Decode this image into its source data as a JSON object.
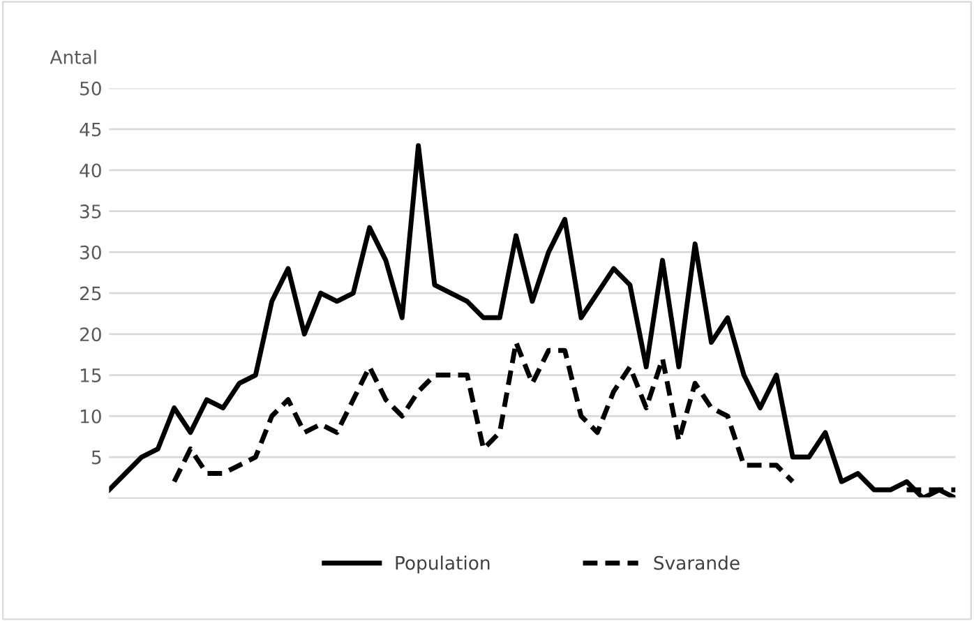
{
  "chart_data": {
    "type": "line",
    "ylabel": "Antal",
    "categories": [
      null,
      null,
      null,
      null,
      null,
      null,
      null,
      null,
      null,
      null,
      null,
      null,
      null,
      null,
      null,
      null,
      null,
      null,
      null,
      null,
      null,
      null,
      null,
      null,
      null,
      null,
      null,
      null,
      null,
      null,
      null,
      null,
      null,
      null,
      null,
      null,
      null,
      null,
      null,
      null,
      null,
      null,
      null,
      null,
      null,
      null,
      null,
      null,
      null,
      null,
      null,
      null,
      null
    ],
    "series": [
      {
        "name": "Population",
        "color": "#000000",
        "line_style": "solid",
        "values": [
          1,
          3,
          5,
          6,
          11,
          8,
          12,
          11,
          14,
          15,
          24,
          28,
          20,
          25,
          24,
          25,
          33,
          29,
          22,
          43,
          26,
          25,
          24,
          22,
          22,
          32,
          24,
          30,
          34,
          22,
          25,
          28,
          26,
          16,
          29,
          16,
          31,
          19,
          22,
          15,
          11,
          15,
          5,
          5,
          8,
          2,
          3,
          1,
          1,
          2,
          0,
          1,
          0
        ]
      },
      {
        "name": "Svarande",
        "color": "#000000",
        "line_style": "dashed",
        "values": [
          null,
          null,
          null,
          null,
          2,
          6,
          3,
          3,
          4,
          5,
          10,
          12,
          8,
          9,
          8,
          12,
          16,
          12,
          10,
          13,
          15,
          15,
          15,
          6,
          8,
          19,
          14,
          18,
          18,
          10,
          8,
          13,
          16,
          11,
          17,
          7,
          14,
          11,
          10,
          4,
          4,
          4,
          2,
          null,
          null,
          null,
          null,
          null,
          null,
          1,
          1,
          1,
          1
        ]
      }
    ],
    "ylim": [
      0,
      50
    ],
    "yticks": [
      5,
      10,
      15,
      20,
      25,
      30,
      35,
      40,
      45,
      50
    ],
    "grid": "y",
    "legend": "bottom",
    "marker": "none"
  }
}
